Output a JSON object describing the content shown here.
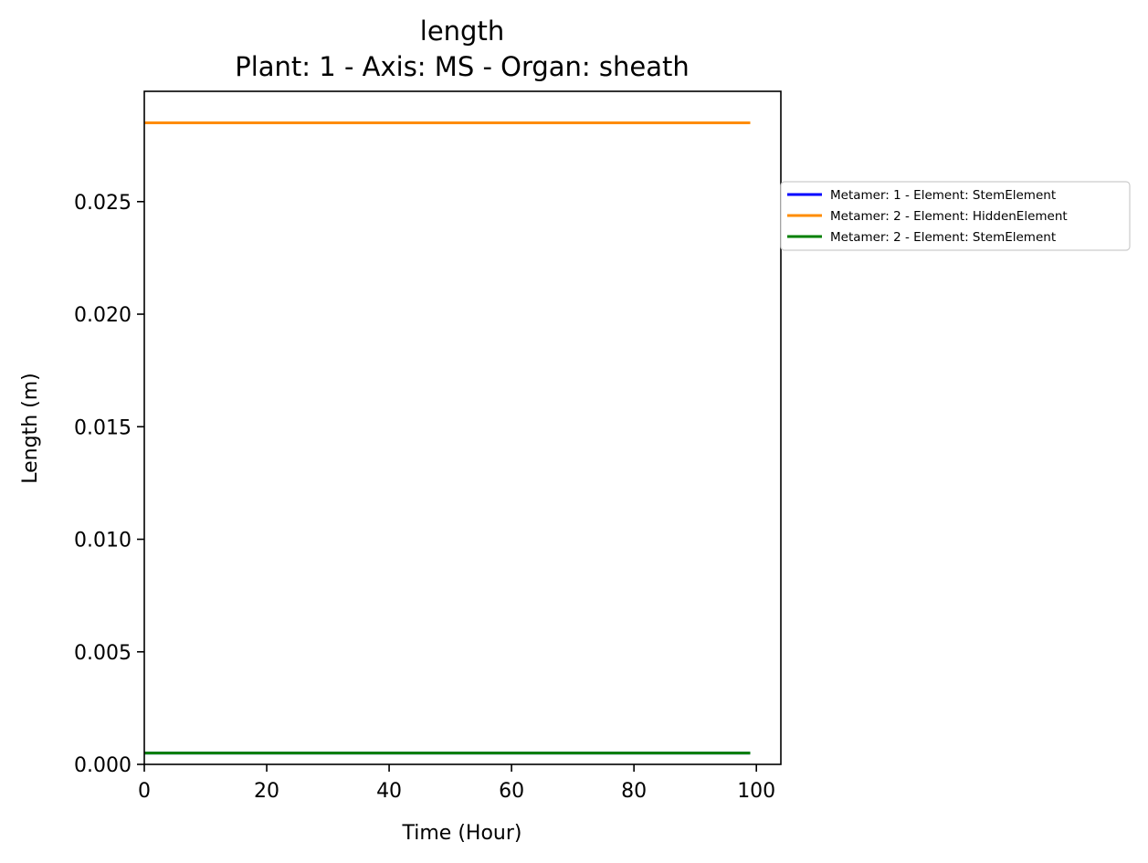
{
  "chart_data": {
    "type": "line",
    "title": "length",
    "subtitle": "Plant: 1 - Axis: MS - Organ: sheath",
    "xlabel": "Time (Hour)",
    "ylabel": "Length (m)",
    "xlim": [
      0,
      104
    ],
    "ylim": [
      0,
      0.0299
    ],
    "xticks": [
      0,
      20,
      40,
      60,
      80,
      100
    ],
    "yticks": [
      0.0,
      0.005,
      0.01,
      0.015,
      0.02,
      0.025
    ],
    "xtick_labels": [
      "0",
      "20",
      "40",
      "60",
      "80",
      "100"
    ],
    "ytick_labels": [
      "0.000",
      "0.005",
      "0.010",
      "0.015",
      "0.020",
      "0.025"
    ],
    "grid": false,
    "legend_position": "outside-right",
    "series": [
      {
        "name": "Metamer: 1 - Element: StemElement",
        "color": "#0000ff",
        "x": [
          0,
          99
        ],
        "y": [
          0.0005,
          0.0005
        ]
      },
      {
        "name": "Metamer: 2 - Element: HiddenElement",
        "color": "#ff8c00",
        "x": [
          0,
          99
        ],
        "y": [
          0.0285,
          0.0285
        ]
      },
      {
        "name": "Metamer: 2 - Element: StemElement",
        "color": "#008000",
        "x": [
          0,
          99
        ],
        "y": [
          0.0005,
          0.0005
        ]
      }
    ]
  }
}
